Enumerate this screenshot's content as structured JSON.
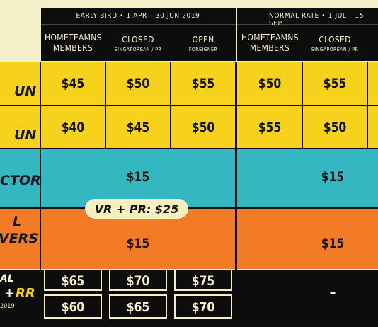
{
  "header": {
    "early_bird": "EARLY BIRD  •  1 APR – 30 JUN 2019",
    "normal_rate": "NORMAL RATE  •  1 JUL – 15 SEP"
  },
  "columns": [
    {
      "main": "HOMETEAMNS MEMBERS",
      "sub": ""
    },
    {
      "main": "CLOSED",
      "sub": "SINGAPOREAN / PR"
    },
    {
      "main": "OPEN",
      "sub": "FOREIGNER"
    },
    {
      "main": "HOMETEAMNS MEMBERS",
      "sub": ""
    },
    {
      "main": "CLOSED",
      "sub": "SINGAPOREAN / PR"
    }
  ],
  "rows": [
    {
      "label": "UN",
      "prices": [
        "$45",
        "$50",
        "$55",
        "$50",
        "$55"
      ]
    },
    {
      "label": "UN",
      "prices": [
        "$40",
        "$45",
        "$50",
        "$55",
        "$50"
      ]
    },
    {
      "label": "CTOR",
      "early_price": "$15",
      "normal_price": "$15"
    },
    {
      "label_top": "L",
      "label_bottom": "VERS",
      "early_price": "$15",
      "normal_price": "$15"
    }
  ],
  "pill": "VR + PR: $25",
  "bundle": {
    "label_top": "AL",
    "label_mid_a": "+",
    "label_mid_b": "RR",
    "label_bottom": "2019",
    "row1": [
      "$65",
      "$70",
      "$75"
    ],
    "row2": [
      "$60",
      "$65",
      "$70"
    ],
    "normal_value": "–"
  },
  "colors": {
    "yellow": "#f6d21c",
    "teal": "#34b7c1",
    "orange": "#f47b25",
    "black": "#0d0d0d",
    "cream": "#f4efc9"
  }
}
